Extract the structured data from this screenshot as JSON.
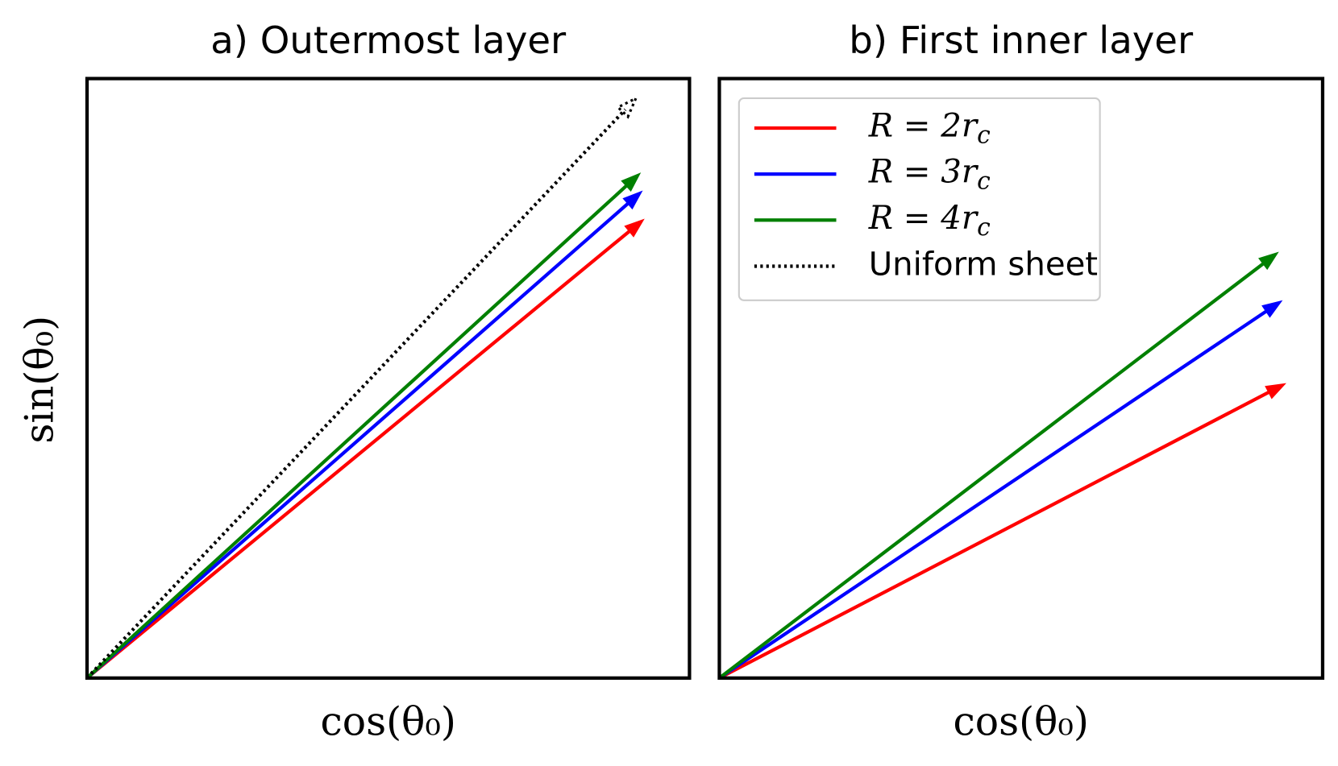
{
  "chart_data": [
    {
      "type": "quiver",
      "title": "a) Outermost layer",
      "xlabel": "cos(θ₀)",
      "ylabel": "sin(θ₀)",
      "xlim": [
        0,
        1
      ],
      "ylim": [
        0,
        1
      ],
      "series": [
        {
          "name": "R = 2rc",
          "color": "#ff0000",
          "linestyle": "solid",
          "x": 0.924,
          "y": 0.765
        },
        {
          "name": "R = 3rc",
          "color": "#0000ff",
          "linestyle": "solid",
          "x": 0.921,
          "y": 0.812
        },
        {
          "name": "R = 4rc",
          "color": "#008000",
          "linestyle": "solid",
          "x": 0.918,
          "y": 0.842
        },
        {
          "name": "Uniform sheet",
          "color": "#000000",
          "linestyle": "dotted",
          "x": 0.911,
          "y": 0.967
        }
      ]
    },
    {
      "type": "quiver",
      "title": "b) First inner layer",
      "xlabel": "cos(θ₀)",
      "xlim": [
        0,
        1
      ],
      "ylim": [
        0,
        1
      ],
      "legend": "upper left",
      "series": [
        {
          "color": "#ff0000",
          "linestyle": "solid",
          "x": 0.938,
          "y": 0.491
        },
        {
          "color": "#0000ff",
          "linestyle": "solid",
          "x": 0.932,
          "y": 0.629
        },
        {
          "color": "#008000",
          "linestyle": "solid",
          "x": 0.926,
          "y": 0.71
        }
      ]
    }
  ]
}
